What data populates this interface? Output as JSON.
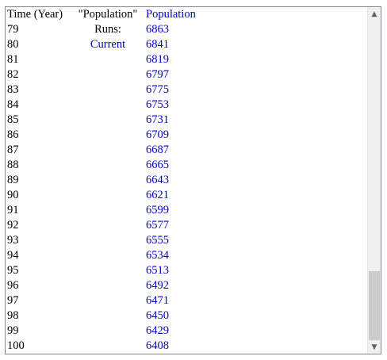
{
  "header": {
    "col1": "Time (Year)",
    "col2": "\"Population\"",
    "col3": "Population"
  },
  "subheader": {
    "line1": "Runs:",
    "line2": "Current"
  },
  "rows": [
    {
      "time": "79",
      "value": "6863"
    },
    {
      "time": "80",
      "value": "6841"
    },
    {
      "time": "81",
      "value": "6819"
    },
    {
      "time": "82",
      "value": "6797"
    },
    {
      "time": "83",
      "value": "6775"
    },
    {
      "time": "84",
      "value": "6753"
    },
    {
      "time": "85",
      "value": "6731"
    },
    {
      "time": "86",
      "value": "6709"
    },
    {
      "time": "87",
      "value": "6687"
    },
    {
      "time": "88",
      "value": "6665"
    },
    {
      "time": "89",
      "value": "6643"
    },
    {
      "time": "90",
      "value": "6621"
    },
    {
      "time": "91",
      "value": "6599"
    },
    {
      "time": "92",
      "value": "6577"
    },
    {
      "time": "93",
      "value": "6555"
    },
    {
      "time": "94",
      "value": "6534"
    },
    {
      "time": "95",
      "value": "6513"
    },
    {
      "time": "96",
      "value": "6492"
    },
    {
      "time": "97",
      "value": "6471"
    },
    {
      "time": "98",
      "value": "6450"
    },
    {
      "time": "99",
      "value": "6429"
    },
    {
      "time": "100",
      "value": "6408"
    }
  ],
  "scrollbar": {
    "up_icon": "chevron-up-icon",
    "down_icon": "chevron-down-icon",
    "up_glyph": "▲",
    "down_glyph": "▼",
    "position": 0.95
  },
  "colors": {
    "text": "#000000",
    "value_text": "#0000cc",
    "border": "#828790",
    "scroll_track": "#f0f0f0",
    "scroll_thumb": "#cdcdcd"
  }
}
